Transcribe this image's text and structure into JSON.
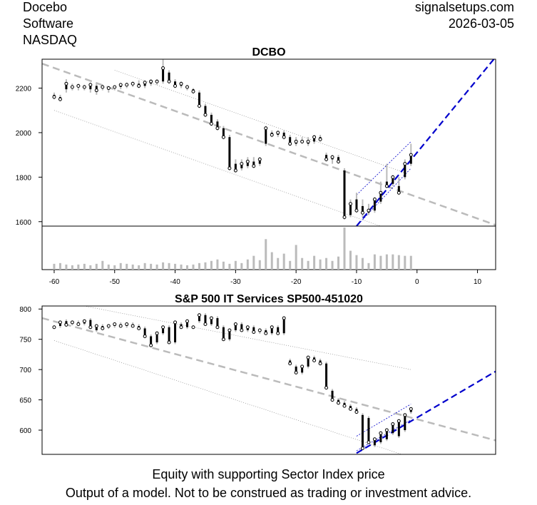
{
  "header": {
    "company_lines": [
      "Docebo",
      "Software",
      "NASDAQ"
    ],
    "site": "signalsetups.com",
    "date": "2026-03-05"
  },
  "footer": {
    "line1": "Equity with supporting Sector Index price",
    "line2": "Output of a model. Not to be construed as trading or investment advice."
  },
  "chart_data": [
    {
      "type": "candlestick",
      "title": "DCBO",
      "xlabel": "",
      "ylabel": "",
      "xlim": [
        -62,
        13
      ],
      "ylim": [
        1580,
        2330
      ],
      "x_ticks": [
        -60,
        -50,
        -40,
        -30,
        -20,
        -10,
        0,
        10
      ],
      "y_ticks": [
        1600,
        1800,
        2000,
        2200
      ],
      "colors": {
        "bar": "#000000",
        "wick": "#bbbbbb",
        "trend": "#bbbbbb",
        "channel": "#888888",
        "projection": "#0000cc",
        "volume": "#bbbbbb"
      },
      "trend_line": {
        "x": [
          -62,
          13
        ],
        "y": [
          2310,
          1585
        ]
      },
      "channel_upper": {
        "x": [
          -50,
          -2
        ],
        "y": [
          2280,
          1820
        ]
      },
      "channel_lower": {
        "x": [
          -60,
          -6
        ],
        "y": [
          2100,
          1580
        ]
      },
      "projection_line": {
        "x": [
          -10,
          13
        ],
        "y": [
          1580,
          2340
        ]
      },
      "projection_channel_upper": {
        "x": [
          -10,
          -1
        ],
        "y": [
          1720,
          1960
        ]
      },
      "projection_channel_lower": {
        "x": [
          -10,
          -1
        ],
        "y": [
          1580,
          1840
        ]
      },
      "series": [
        {
          "x": [
            -60,
            -59,
            -58,
            -57,
            -56,
            -55,
            -54,
            -53,
            -52,
            -51,
            -50,
            -49,
            -48,
            -47,
            -46,
            -45,
            -44,
            -43,
            -42,
            -41,
            -40,
            -39,
            -38,
            -37,
            -36,
            -35,
            -34,
            -33,
            -32,
            -31,
            -30,
            -29,
            -28,
            -27,
            -26,
            -25,
            -24,
            -23,
            -22,
            -21,
            -20,
            -19,
            -18,
            -17,
            -16,
            -15,
            -14,
            -13,
            -12,
            -11,
            -10,
            -9,
            -8,
            -7,
            -6,
            -5,
            -4,
            -3,
            -2,
            -1
          ],
          "open": [
            2170,
            2160,
            2195,
            2210,
            2205,
            2200,
            2195,
            2210,
            2200,
            2195,
            2200,
            2205,
            2210,
            2215,
            2220,
            2210,
            2220,
            2225,
            2230,
            2270,
            2230,
            2210,
            2200,
            2195,
            2180,
            2120,
            2080,
            2050,
            2020,
            1980,
            1860,
            1840,
            1850,
            1870,
            1860,
            1950,
            2000,
            1990,
            2000,
            1980,
            1950,
            1960,
            1950,
            1960,
            1980,
            1900,
            1880,
            1890,
            1830,
            1630,
            1700,
            1670,
            1640,
            1650,
            1690,
            1780,
            1770,
            1760,
            1800,
            1860
          ],
          "close": [
            2160,
            2150,
            2220,
            2205,
            2210,
            2205,
            2215,
            2190,
            2205,
            2200,
            2205,
            2215,
            2215,
            2220,
            2210,
            2225,
            2230,
            2230,
            2290,
            2230,
            2210,
            2220,
            2205,
            2185,
            2120,
            2080,
            2040,
            2020,
            1980,
            1840,
            1830,
            1860,
            1870,
            1850,
            1880,
            2020,
            1990,
            2000,
            1980,
            1950,
            1960,
            1960,
            1960,
            1980,
            1970,
            1880,
            1890,
            1870,
            1620,
            1680,
            1650,
            1640,
            1650,
            1700,
            1730,
            1760,
            1800,
            1730,
            1860,
            1900
          ],
          "high": [
            2180,
            2170,
            2240,
            2220,
            2220,
            2215,
            2225,
            2225,
            2215,
            2210,
            2210,
            2220,
            2225,
            2230,
            2235,
            2235,
            2240,
            2240,
            2340,
            2280,
            2240,
            2230,
            2215,
            2200,
            2190,
            2130,
            2090,
            2060,
            2030,
            1990,
            1880,
            1880,
            1890,
            1890,
            1890,
            2030,
            2010,
            2010,
            2010,
            1990,
            1980,
            1980,
            1980,
            1990,
            1990,
            1910,
            1900,
            1900,
            1840,
            1700,
            1730,
            1700,
            1680,
            1710,
            1780,
            1860,
            1810,
            1800,
            1880,
            1950
          ],
          "low": [
            2150,
            2140,
            2180,
            2190,
            2190,
            2190,
            2180,
            2170,
            2190,
            2180,
            2190,
            2195,
            2200,
            2205,
            2200,
            2200,
            2210,
            2215,
            2220,
            2220,
            2200,
            2200,
            2190,
            2175,
            2110,
            2070,
            2030,
            2010,
            1970,
            1830,
            1820,
            1830,
            1840,
            1840,
            1850,
            1940,
            1980,
            1980,
            1970,
            1940,
            1940,
            1950,
            1940,
            1950,
            1960,
            1870,
            1860,
            1860,
            1610,
            1620,
            1640,
            1620,
            1630,
            1640,
            1680,
            1750,
            1760,
            1720,
            1790,
            1850
          ]
        }
      ],
      "volume": {
        "x": [
          -60,
          -59,
          -58,
          -57,
          -56,
          -55,
          -54,
          -53,
          -52,
          -51,
          -50,
          -49,
          -48,
          -47,
          -46,
          -45,
          -44,
          -43,
          -42,
          -41,
          -40,
          -39,
          -38,
          -37,
          -36,
          -35,
          -34,
          -33,
          -32,
          -31,
          -30,
          -29,
          -28,
          -27,
          -26,
          -25,
          -24,
          -23,
          -22,
          -21,
          -20,
          -19,
          -18,
          -17,
          -16,
          -15,
          -14,
          -13,
          -12,
          -11,
          -10,
          -9,
          -8,
          -7,
          -6,
          -5,
          -4,
          -3,
          -2,
          -1
        ],
        "values": [
          8,
          9,
          7,
          6,
          7,
          8,
          6,
          8,
          12,
          7,
          6,
          9,
          8,
          7,
          6,
          9,
          8,
          7,
          10,
          9,
          8,
          7,
          6,
          7,
          9,
          10,
          12,
          14,
          11,
          8,
          12,
          9,
          14,
          19,
          13,
          42,
          24,
          16,
          22,
          12,
          34,
          16,
          12,
          19,
          14,
          16,
          12,
          18,
          58,
          26,
          20,
          16,
          9,
          21,
          19,
          21,
          21,
          20,
          19,
          19
        ]
      }
    },
    {
      "type": "candlestick",
      "title": "S&P 500 IT Services SP500-451020",
      "xlabel": "",
      "ylabel": "",
      "xlim": [
        -62,
        13
      ],
      "ylim": [
        560,
        805
      ],
      "y_ticks": [
        600,
        650,
        700,
        750,
        800
      ],
      "colors": {
        "bar": "#000000",
        "wick": "#bbbbbb",
        "trend": "#bbbbbb",
        "channel": "#888888",
        "projection": "#0000cc"
      },
      "trend_line": {
        "x": [
          -62,
          13
        ],
        "y": [
          785,
          583
        ]
      },
      "channel_upper": {
        "x": [
          -55,
          -1
        ],
        "y": [
          805,
          700
        ]
      },
      "channel_lower": {
        "x": [
          -60,
          -1
        ],
        "y": [
          748,
          555
        ]
      },
      "projection_line": {
        "x": [
          -10,
          13
        ],
        "y": [
          562,
          697
        ]
      },
      "projection_channel_upper": {
        "x": [
          -10,
          -1
        ],
        "y": [
          590,
          643
        ]
      },
      "projection_channel_lower": {
        "x": [
          -10,
          -1
        ],
        "y": [
          566,
          617
        ]
      },
      "series": [
        {
          "x": [
            -60,
            -59,
            -58,
            -57,
            -56,
            -55,
            -54,
            -53,
            -52,
            -51,
            -50,
            -49,
            -48,
            -47,
            -46,
            -45,
            -44,
            -43,
            -42,
            -41,
            -40,
            -39,
            -38,
            -37,
            -36,
            -35,
            -34,
            -33,
            -32,
            -31,
            -30,
            -29,
            -28,
            -27,
            -26,
            -25,
            -24,
            -23,
            -22,
            -21,
            -20,
            -19,
            -18,
            -17,
            -16,
            -15,
            -14,
            -13,
            -12,
            -11,
            -10,
            -9,
            -8,
            -7,
            -6,
            -5,
            -4,
            -3,
            -2,
            -1
          ],
          "open": [
            770,
            772,
            780,
            776,
            778,
            776,
            782,
            765,
            772,
            770,
            772,
            775,
            772,
            775,
            772,
            768,
            755,
            745,
            760,
            770,
            745,
            775,
            770,
            770,
            780,
            790,
            775,
            785,
            770,
            750,
            765,
            775,
            765,
            770,
            762,
            765,
            760,
            770,
            760,
            715,
            705,
            695,
            705,
            720,
            715,
            710,
            665,
            650,
            645,
            640,
            635,
            625,
            620,
            575,
            580,
            585,
            595,
            590,
            600,
            630
          ],
          "close": [
            770,
            778,
            774,
            778,
            775,
            780,
            770,
            772,
            768,
            772,
            775,
            772,
            775,
            772,
            768,
            755,
            740,
            760,
            770,
            745,
            778,
            770,
            780,
            770,
            790,
            775,
            785,
            770,
            750,
            765,
            775,
            765,
            770,
            762,
            765,
            760,
            770,
            760,
            785,
            710,
            695,
            705,
            720,
            715,
            710,
            670,
            650,
            645,
            640,
            635,
            630,
            570,
            580,
            585,
            595,
            600,
            610,
            615,
            625,
            635
          ]
        }
      ]
    }
  ]
}
